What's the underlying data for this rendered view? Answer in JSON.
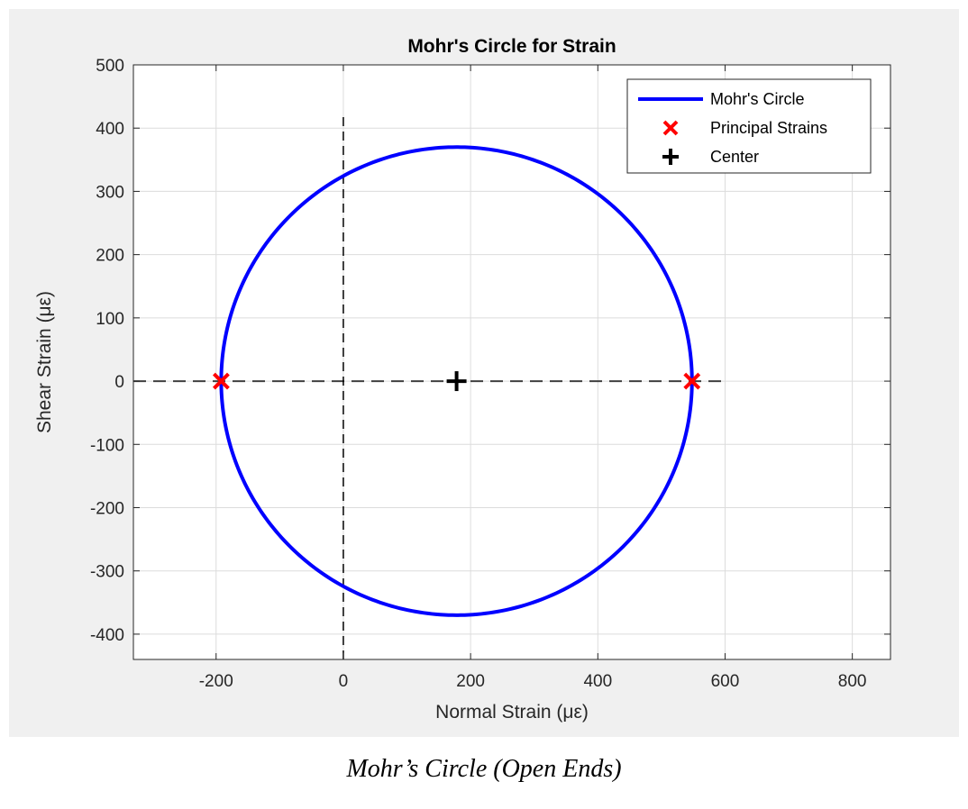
{
  "caption": "Mohr’s Circle (Open Ends)",
  "chart_data": {
    "type": "line",
    "title": "Mohr's Circle for Strain",
    "xlabel": "Normal Strain (με)",
    "ylabel": "Shear Strain (με)",
    "xlim": [
      -330,
      860
    ],
    "ylim": [
      -440,
      500
    ],
    "xticks": [
      -200,
      0,
      200,
      400,
      600,
      800
    ],
    "yticks": [
      -400,
      -300,
      -200,
      -100,
      0,
      100,
      200,
      300,
      400,
      500
    ],
    "xtick_labels": [
      "-200",
      "0",
      "200",
      "400",
      "600",
      "800"
    ],
    "ytick_labels": [
      "-400",
      "-300",
      "-200",
      "-100",
      "0",
      "100",
      "200",
      "300",
      "400",
      "500"
    ],
    "grid": true,
    "legend_position": "top-right",
    "circle": {
      "name": "Mohr's Circle",
      "center": [
        178,
        0
      ],
      "radius": 370,
      "color": "#0000ff"
    },
    "principal_strains": {
      "name": "Principal Strains",
      "points": [
        [
          -192,
          0
        ],
        [
          548,
          0
        ]
      ],
      "color": "#ff0000",
      "marker": "x"
    },
    "center_point": {
      "name": "Center",
      "point": [
        178,
        0
      ],
      "color": "#000000",
      "marker": "+"
    },
    "reference_lines": [
      {
        "orientation": "horizontal",
        "y": 0,
        "x_range": [
          -330,
          600
        ],
        "style": "dashed"
      },
      {
        "orientation": "vertical",
        "x": 0,
        "y_range": [
          -440,
          420
        ],
        "style": "dashed"
      }
    ]
  }
}
